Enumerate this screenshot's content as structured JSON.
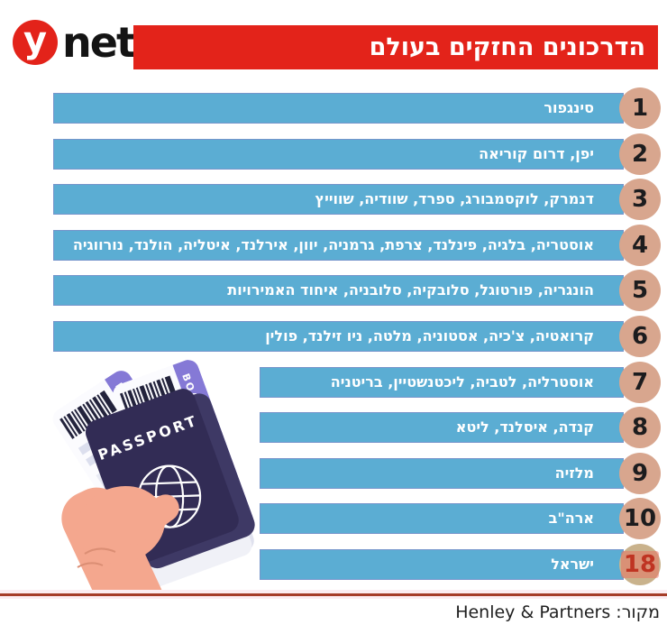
{
  "header": {
    "logo": {
      "y_letter": "y",
      "net_text": "net"
    },
    "title": "הדרכונים החזקים בעולם"
  },
  "chart_data": {
    "type": "bar",
    "title": "הדרכונים החזקים בעולם",
    "orientation": "horizontal",
    "direction": "rtl",
    "value_meaning": "passport power rank (lower = stronger)",
    "rows": [
      {
        "rank": 1,
        "countries": "סינגפור",
        "full_width": true,
        "highlight": false
      },
      {
        "rank": 2,
        "countries": "יפן, דרום קוריאה",
        "full_width": true,
        "highlight": false
      },
      {
        "rank": 3,
        "countries": "דנמרק, לוקסמבורג, ספרד, שוודיה, שווייץ",
        "full_width": true,
        "highlight": false
      },
      {
        "rank": 4,
        "countries": "אוסטריה, בלגיה, פינלנד, צרפת, גרמניה, יוון, אירלנד, איטליה, הולנד, נורווגיה",
        "full_width": true,
        "highlight": false
      },
      {
        "rank": 5,
        "countries": "הונגריה, פורטוגל, סלובקיה, סלובניה, איחוד האמירויות",
        "full_width": true,
        "highlight": false
      },
      {
        "rank": 6,
        "countries": "קרואטיה, צ'כיה, אסטוניה, מלטה, ניו זילנד, פולין",
        "full_width": true,
        "highlight": false
      },
      {
        "rank": 7,
        "countries": "אוסטרליה, לטביה, ליכטנשטיין, בריטניה",
        "full_width": false,
        "highlight": false
      },
      {
        "rank": 8,
        "countries": "קנדה, איסלנד, ליטא",
        "full_width": false,
        "highlight": false
      },
      {
        "rank": 9,
        "countries": "מלזיה",
        "full_width": false,
        "highlight": false
      },
      {
        "rank": 10,
        "countries": "ארה\"ב",
        "full_width": false,
        "highlight": false
      },
      {
        "rank": 18,
        "countries": "ישראל",
        "full_width": false,
        "highlight": true
      }
    ]
  },
  "illustration": {
    "name": "hand-holding-passport-and-boarding-passes",
    "passport_label": "PASSPORT",
    "boarding_pass_label": "BOARDING PASS",
    "plane_icon": "✈"
  },
  "footer": {
    "source": "מקור: Henley & Partners"
  },
  "colors": {
    "bar_blue": "#5badd3",
    "badge_tan": "#d8a68e",
    "brand_red": "#e3231a",
    "highlight_red": "#bf3422",
    "divider_red": "#a63c28"
  }
}
